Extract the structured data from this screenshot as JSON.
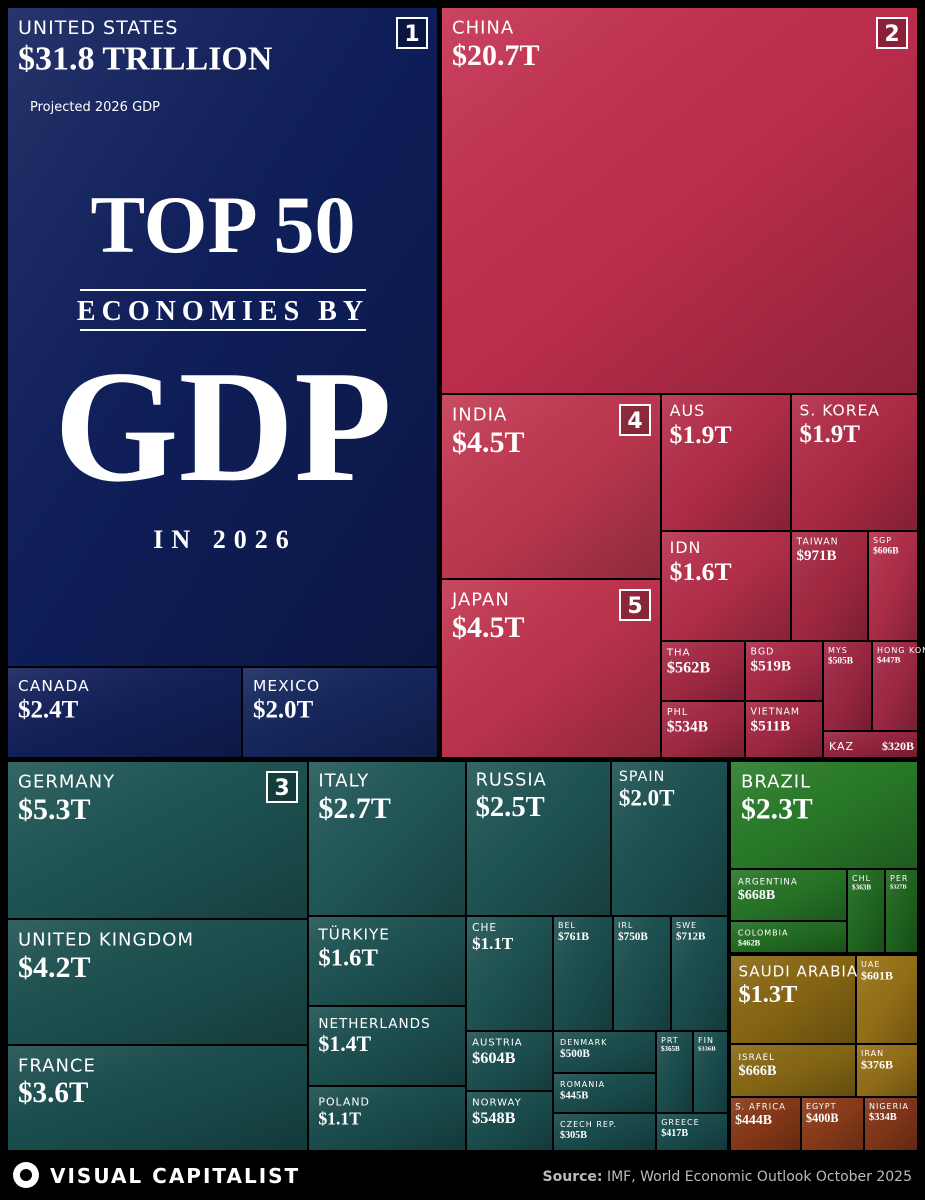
{
  "chart_data": {
    "type": "treemap",
    "headline": {
      "line1": "TOP 50",
      "line2": "ECONOMIES BY",
      "line3": "GDP",
      "line4": "IN 2026"
    },
    "subtitle": "Projected 2026 GDP",
    "categories": [
      "UNITED STATES",
      "CHINA",
      "CANADA",
      "MEXICO",
      "INDIA",
      "JAPAN",
      "AUS",
      "S. KOREA",
      "IDN",
      "TAIWAN",
      "SGP",
      "THA",
      "PHL",
      "BGD",
      "VIETNAM",
      "MYS",
      "HONG KONG",
      "KAZ",
      "GERMANY",
      "UNITED KINGDOM",
      "FRANCE",
      "ITALY",
      "RUSSIA",
      "SPAIN",
      "TÜRKIYE",
      "NETHERLANDS",
      "POLAND",
      "CHE",
      "BEL",
      "IRL",
      "SWE",
      "AUSTRIA",
      "NORWAY",
      "DENMARK",
      "ROMANIA",
      "CZECH REP.",
      "PRT",
      "FIN",
      "GREECE",
      "BRAZIL",
      "ARGENTINA",
      "COLOMBIA",
      "CHL",
      "PER",
      "SAUDI ARABIA",
      "UAE",
      "ISRAEL",
      "IRAN",
      "S. AFRICA",
      "EGYPT",
      "NIGERIA"
    ],
    "values": [
      31800,
      20700,
      2400,
      2000,
      4500,
      4500,
      1900,
      1900,
      1600,
      971,
      606,
      562,
      534,
      519,
      511,
      505,
      447,
      320,
      5300,
      4200,
      3600,
      2700,
      2500,
      2000,
      1600,
      1400,
      1100,
      1100,
      761,
      750,
      712,
      604,
      548,
      500,
      445,
      305,
      365,
      336,
      417,
      2300,
      668,
      462,
      363,
      327,
      1300,
      601,
      666,
      376,
      444,
      400,
      334
    ],
    "value_labels": [
      "$31.8 TRILLION",
      "$20.7T",
      "$2.4T",
      "$2.0T",
      "$4.5T",
      "$4.5T",
      "$1.9T",
      "$1.9T",
      "$1.6T",
      "$971B",
      "$606B",
      "$562B",
      "$534B",
      "$519B",
      "$511B",
      "$505B",
      "$447B",
      "$320B",
      "$5.3T",
      "$4.2T",
      "$3.6T",
      "$2.7T",
      "$2.5T",
      "$2.0T",
      "$1.6T",
      "$1.4T",
      "$1.1T",
      "$1.1T",
      "$761B",
      "$750B",
      "$712B",
      "$604B",
      "$548B",
      "$500B",
      "$445B",
      "$305B",
      "$365B",
      "$336B",
      "$417B",
      "$2.3T",
      "$668B",
      "$462B",
      "$363B",
      "$327B",
      "$1.3T",
      "$601B",
      "$666B",
      "$376B",
      "$444B",
      "$400B",
      "$334B"
    ],
    "ranks": [
      1,
      2,
      null,
      null,
      4,
      5,
      null,
      null,
      null,
      null,
      null,
      null,
      null,
      null,
      null,
      null,
      null,
      null,
      3,
      null,
      null,
      null,
      null,
      null,
      null,
      null,
      null,
      null,
      null,
      null,
      null,
      null,
      null,
      null,
      null,
      null,
      null,
      null,
      null,
      null,
      null,
      null,
      null,
      null,
      null,
      null,
      null,
      null,
      null,
      null,
      null
    ],
    "colors": [
      "#0f1f5c",
      "#c42f4f",
      "#12215c",
      "#15275f",
      "#c43a52",
      "#c43550",
      "#b72e4a",
      "#b32c47",
      "#b9304c",
      "#a82a44",
      "#b32f4b",
      "#a92b46",
      "#a72a45",
      "#ad2c48",
      "#a62944",
      "#a12843",
      "#a52a46",
      "#9c2641",
      "#1f5656",
      "#1d5252",
      "#1b4f50",
      "#22595a",
      "#205656",
      "#1e5354",
      "#1f5455",
      "#1d5152",
      "#1b4e4f",
      "#1f5556",
      "#1c5152",
      "#1d5253",
      "#1c5051",
      "#1d5253",
      "#1b4f50",
      "#1c5051",
      "#1b4f50",
      "#1a4d4e",
      "#1c5051",
      "#1b4f50",
      "#1a4d4e",
      "#2a7d2a",
      "#287828",
      "#237023",
      "#226c22",
      "#206820",
      "#8c6a14",
      "#9a7418",
      "#8a6a15",
      "#97721a",
      "#8a3a18",
      "#8e3d1a",
      "#86371a"
    ],
    "brand": "VISUAL CAPITALIST",
    "source_label": "Source:",
    "source_text": "IMF, World Economic Outlook October 2025"
  }
}
